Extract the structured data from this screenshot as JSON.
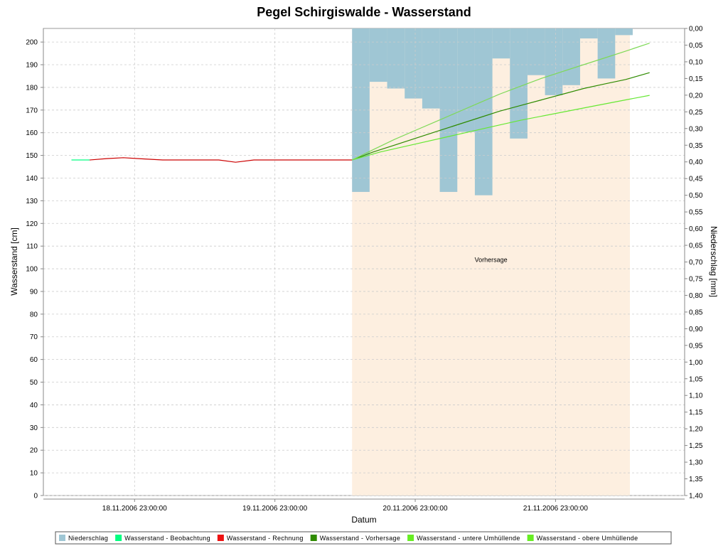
{
  "chart_data": {
    "type": "line",
    "title": "Pegel Schirgiswalde - Wasserstand",
    "xlabel": "Datum",
    "ylabel": "Wasserstand [cm]",
    "y2label": "Niederschlag [mm]",
    "ylim": [
      0,
      206
    ],
    "y2lim": [
      0.0,
      1.4
    ],
    "y_ticks": [
      0,
      10,
      20,
      30,
      40,
      50,
      60,
      70,
      80,
      90,
      100,
      110,
      120,
      130,
      140,
      150,
      160,
      170,
      180,
      190,
      200
    ],
    "y2_ticks": [
      "0,00",
      "0,05",
      "0,10",
      "0,15",
      "0,20",
      "0,25",
      "0,30",
      "0,35",
      "0,40",
      "0,45",
      "0,50",
      "0,55",
      "0,60",
      "0,65",
      "0,70",
      "0,75",
      "0,80",
      "0,85",
      "0,90",
      "0,95",
      "1,00",
      "1,05",
      "1,10",
      "1,15",
      "1,20",
      "1,25",
      "1,30",
      "1,35",
      "1,40"
    ],
    "xlim": [
      17.35,
      21.92
    ],
    "x_ticks": [
      {
        "value": 18.0,
        "label": "18.11.2006 23:00:00"
      },
      {
        "value": 19.0,
        "label": "19.11.2006 23:00:00"
      },
      {
        "value": 20.0,
        "label": "20.11.2006 23:00:00"
      },
      {
        "value": 21.0,
        "label": "21.11.2006 23:00:00"
      }
    ],
    "grid": true,
    "legend_placement": "bottom",
    "forecast_region": {
      "x_start": 19.55,
      "x_end": 21.53,
      "label": "Vorhersage",
      "label_y": 103,
      "color": "#fdefe0"
    },
    "series": [
      {
        "name": "Niederschlag",
        "type": "bar",
        "axis": "right",
        "color": "#9fc6d4",
        "bar_width": 0.125,
        "x": [
          19.55,
          19.675,
          19.8,
          19.925,
          20.05,
          20.175,
          20.3,
          20.425,
          20.55,
          20.675,
          20.8,
          20.925,
          21.05,
          21.175,
          21.3,
          21.425
        ],
        "values": [
          0.49,
          0.16,
          0.18,
          0.21,
          0.24,
          0.49,
          0.31,
          0.5,
          0.09,
          0.33,
          0.14,
          0.2,
          0.17,
          0.03,
          0.15,
          0.02
        ]
      },
      {
        "name": "Wasserstand - Beobachtung",
        "color": "#00ff80",
        "x": [
          17.55,
          17.68
        ],
        "values": [
          148,
          148
        ]
      },
      {
        "name": "Wasserstand - Rechnung",
        "color": "#cc0000",
        "x": [
          17.68,
          17.8,
          17.92,
          18.05,
          18.2,
          18.35,
          18.5,
          18.6,
          18.72,
          18.85,
          19.0,
          19.2,
          19.4,
          19.55
        ],
        "values": [
          148,
          148.6,
          149,
          148.5,
          148,
          148,
          148,
          148,
          147,
          148,
          148,
          148,
          148,
          148
        ]
      },
      {
        "name": "Wasserstand - Vorhersage",
        "color": "#2e8b00",
        "x": [
          19.55,
          19.7,
          19.85,
          20.0,
          20.15,
          20.3,
          20.45,
          20.6,
          20.75,
          20.9,
          21.05,
          21.2,
          21.35,
          21.5,
          21.67
        ],
        "values": [
          148,
          151.5,
          154.5,
          157.5,
          160.5,
          163.5,
          166.5,
          169.5,
          172,
          174.5,
          177,
          179.5,
          181.5,
          183.5,
          186.5
        ]
      },
      {
        "name": "Wasserstand - untere Umhüllende",
        "color": "#66e833",
        "x": [
          19.55,
          19.75,
          20.0,
          20.25,
          20.5,
          20.75,
          21.0,
          21.25,
          21.5,
          21.67
        ],
        "values": [
          148,
          151.5,
          155,
          158.5,
          162,
          165.5,
          168.5,
          171.5,
          174.5,
          176.5
        ]
      },
      {
        "name": "Wasserstand - obere Umhüllende",
        "color": "#7ed957",
        "x": [
          19.55,
          19.7,
          19.85,
          20.0,
          20.15,
          20.3,
          20.45,
          20.6,
          20.75,
          20.9,
          21.05,
          21.2,
          21.35,
          21.5,
          21.67
        ],
        "values": [
          148,
          152.5,
          157,
          161,
          165,
          169,
          173,
          177,
          180.5,
          184,
          187,
          190,
          193,
          196,
          199.5
        ]
      }
    ]
  },
  "legend": [
    {
      "label": "Niederschlag",
      "color": "#9fc6d4"
    },
    {
      "label": "Wasserstand - Beobachtung",
      "color": "#00ff80"
    },
    {
      "label": "Wasserstand - Rechnung",
      "color": "#ee1111"
    },
    {
      "label": "Wasserstand - Vorhersage",
      "color": "#2e8b00"
    },
    {
      "label": "Wasserstand - untere Umhüllende",
      "color": "#66ee22"
    },
    {
      "label": "Wasserstand - obere Umhüllende",
      "color": "#66ee22"
    }
  ]
}
